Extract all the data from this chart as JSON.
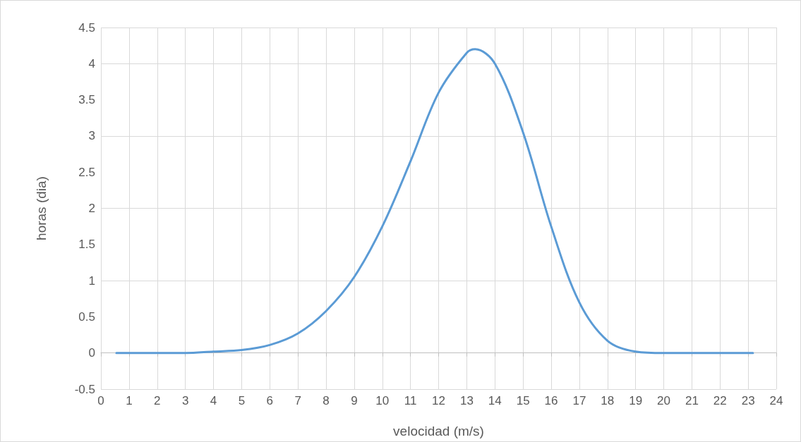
{
  "chart_data": {
    "type": "line",
    "xlabel": "velocidad (m/s)",
    "ylabel": "horas (dia)",
    "x": [
      0.55,
      1,
      2,
      3,
      4,
      5,
      6,
      7,
      8,
      9,
      10,
      11,
      12,
      13,
      13.3,
      14,
      15,
      16,
      17,
      18,
      19,
      20,
      21,
      22,
      23.17
    ],
    "series": [
      {
        "color": "#5b9bd5",
        "values": [
          0,
          0,
          0,
          0,
          0.02,
          0.04,
          0.11,
          0.27,
          0.58,
          1.05,
          1.75,
          2.65,
          3.6,
          4.15,
          4.2,
          4.0,
          3.05,
          1.75,
          0.7,
          0.17,
          0.02,
          0,
          0,
          0,
          0
        ]
      }
    ],
    "xlim": [
      0,
      24
    ],
    "xticks": [
      0,
      1,
      2,
      3,
      4,
      5,
      6,
      7,
      8,
      9,
      10,
      11,
      12,
      13,
      14,
      15,
      16,
      17,
      18,
      19,
      20,
      21,
      22,
      23,
      24
    ],
    "ylim": [
      -0.5,
      4.5
    ],
    "yticks": [
      -0.5,
      0,
      0.5,
      1,
      1.5,
      2,
      2.5,
      3,
      3.5,
      4,
      4.5
    ],
    "grid": true,
    "marker": "none",
    "line_style": "solid"
  }
}
